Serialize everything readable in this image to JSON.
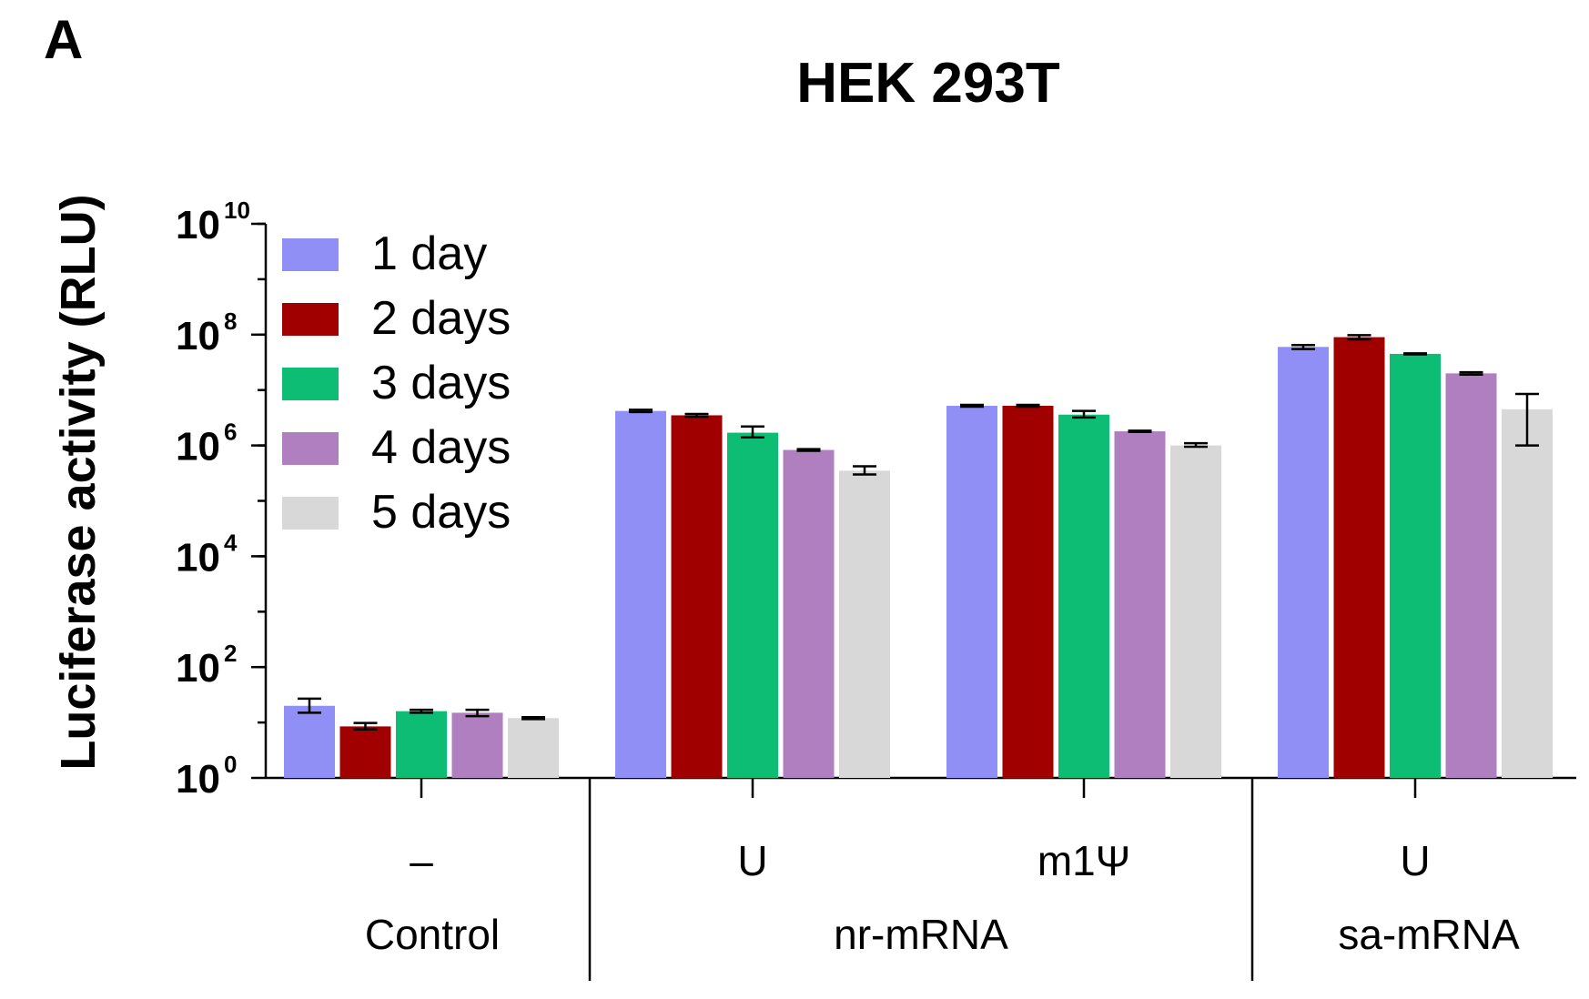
{
  "panel_letter": "A",
  "chart_data": {
    "type": "bar",
    "title": "HEK 293T",
    "ylabel": "Luciferase activity (RLU)",
    "xlabel": "",
    "yscale": "log",
    "ylim": [
      1,
      10000000000
    ],
    "yticks": [
      {
        "value": 1,
        "base": "10",
        "exp": "0"
      },
      {
        "value": 100,
        "base": "10",
        "exp": "2"
      },
      {
        "value": 10000,
        "base": "10",
        "exp": "4"
      },
      {
        "value": 1000000,
        "base": "10",
        "exp": "6"
      },
      {
        "value": 100000000,
        "base": "10",
        "exp": "8"
      },
      {
        "value": 10000000000,
        "base": "10",
        "exp": "10"
      }
    ],
    "legend_position": "top-left",
    "categories": [
      "–",
      "U",
      "m1Ψ",
      "U"
    ],
    "groups": [
      {
        "label": "Control",
        "categories": [
          0
        ]
      },
      {
        "label": "nr-mRNA",
        "categories": [
          1,
          2
        ]
      },
      {
        "label": "sa-mRNA",
        "categories": [
          3
        ]
      }
    ],
    "series": [
      {
        "name": "1 day",
        "color": "#8f8ff5",
        "values": [
          20,
          4200000,
          5200000,
          60000000
        ],
        "err_low": [
          15,
          4000000,
          5000000,
          55000000
        ],
        "err_high": [
          27,
          4400000,
          5400000,
          65000000
        ]
      },
      {
        "name": "2 days",
        "color": "#a00000",
        "values": [
          8.5,
          3500000,
          5200000,
          90000000
        ],
        "err_low": [
          7.5,
          3300000,
          5000000,
          82000000
        ],
        "err_high": [
          9.8,
          3700000,
          5400000,
          98000000
        ]
      },
      {
        "name": "3 days",
        "color": "#0dbd74",
        "values": [
          16,
          1700000,
          3600000,
          45000000
        ],
        "err_low": [
          15,
          1400000,
          3200000,
          44000000
        ],
        "err_high": [
          17,
          2200000,
          4200000,
          46000000
        ]
      },
      {
        "name": "4 days",
        "color": "#b07fc0",
        "values": [
          15,
          830000,
          1800000,
          20000000
        ],
        "err_low": [
          13,
          800000,
          1750000,
          19000000
        ],
        "err_high": [
          17,
          860000,
          1850000,
          21000000
        ]
      },
      {
        "name": "5 days",
        "color": "#d8d8d8",
        "values": [
          12,
          350000,
          1000000,
          4500000
        ],
        "err_low": [
          11.5,
          300000,
          950000,
          1000000
        ],
        "err_high": [
          12.5,
          420000,
          1100000,
          8500000
        ]
      }
    ]
  }
}
